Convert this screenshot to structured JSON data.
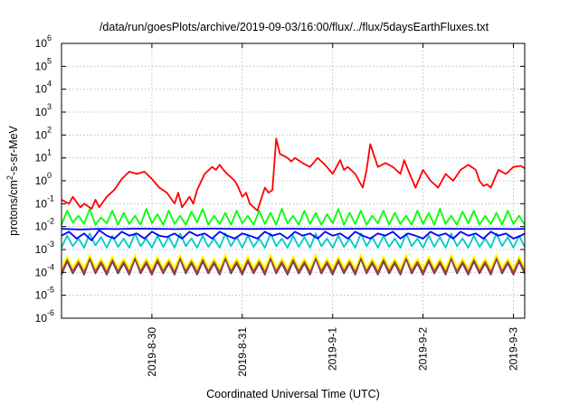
{
  "chart_data": {
    "type": "line",
    "title": "/data/run/goesPlots/archive/2019-09-03/16:00/flux/../flux/5daysEarthFluxes.txt",
    "xlabel": "Coordinated Universal Time (UTC)",
    "ylabel": "protons/cm2-s-sr-MeV",
    "ylabel_parts": {
      "before": "protons/cm",
      "sup": "2",
      "after": "-s-sr-MeV"
    },
    "y_scale": "log",
    "ylim": [
      1e-06,
      1000000.0
    ],
    "y_ticks": [
      {
        "exp": -6,
        "label": "10",
        "sup": "-6"
      },
      {
        "exp": -5,
        "label": "10",
        "sup": "-5"
      },
      {
        "exp": -4,
        "label": "10",
        "sup": "-4"
      },
      {
        "exp": -3,
        "label": "10",
        "sup": "-3"
      },
      {
        "exp": -2,
        "label": "10",
        "sup": "-2"
      },
      {
        "exp": -1,
        "label": "10",
        "sup": "-1"
      },
      {
        "exp": 0,
        "label": "10",
        "sup": "0"
      },
      {
        "exp": 1,
        "label": "10",
        "sup": "1"
      },
      {
        "exp": 2,
        "label": "10",
        "sup": "2"
      },
      {
        "exp": 3,
        "label": "10",
        "sup": "3"
      },
      {
        "exp": 4,
        "label": "10",
        "sup": "4"
      },
      {
        "exp": 5,
        "label": "10",
        "sup": "5"
      },
      {
        "exp": 6,
        "label": "10",
        "sup": "6"
      }
    ],
    "x_unit": "hours",
    "xlim": [
      0,
      123
    ],
    "x_ticks": [
      {
        "x": 24,
        "label": "2019-8-30"
      },
      {
        "x": 48,
        "label": "2019-8-31"
      },
      {
        "x": 72,
        "label": "2019-9-1"
      },
      {
        "x": 96,
        "label": "2019-9-2"
      },
      {
        "x": 120,
        "label": "2019-9-3"
      }
    ],
    "grid": true,
    "series": [
      {
        "color": "#ff0000",
        "x": [
          0,
          2,
          3,
          5,
          6,
          8,
          9,
          10,
          12,
          14,
          16,
          18,
          20,
          22,
          24,
          26,
          28,
          30,
          31,
          32,
          34,
          35,
          36,
          38,
          40,
          41,
          42,
          43,
          44,
          46,
          47,
          48,
          49,
          50,
          52,
          54,
          55,
          56,
          57,
          58,
          60,
          61,
          62,
          64,
          66,
          68,
          70,
          72,
          74,
          75,
          76,
          78,
          79,
          80,
          81,
          82,
          84,
          86,
          88,
          90,
          91,
          92,
          94,
          96,
          98,
          100,
          102,
          104,
          106,
          108,
          110,
          111,
          112,
          113,
          114,
          116,
          118,
          120,
          122,
          123
        ],
        "values": [
          0.15,
          0.1,
          0.2,
          0.07,
          0.1,
          0.06,
          0.15,
          0.07,
          0.2,
          0.4,
          1.2,
          2.5,
          2,
          2.5,
          1.2,
          0.5,
          0.3,
          0.1,
          0.3,
          0.07,
          0.2,
          0.1,
          0.4,
          2,
          4,
          3,
          5,
          3,
          2,
          1,
          0.5,
          0.2,
          0.3,
          0.1,
          0.05,
          0.5,
          0.3,
          0.4,
          70,
          15,
          10,
          7,
          10,
          6,
          4,
          10,
          5,
          2,
          8,
          3,
          4,
          2,
          1,
          0.5,
          3,
          40,
          4,
          6,
          4,
          2,
          8,
          3,
          0.5,
          3,
          1,
          0.5,
          2,
          1,
          3,
          5,
          3,
          1,
          0.6,
          0.7,
          0.5,
          3,
          2,
          4,
          4.5,
          3.5
        ]
      },
      {
        "color": "#00ff00",
        "x": [
          0,
          3,
          6,
          9,
          12,
          15,
          18,
          21,
          24,
          27,
          30,
          33,
          36,
          39,
          42,
          45,
          48,
          51,
          54,
          57,
          60,
          63,
          66,
          69,
          72,
          75,
          78,
          81,
          84,
          87,
          90,
          93,
          96,
          99,
          102,
          105,
          108,
          111,
          114,
          117,
          120,
          123
        ],
        "values": [
          0.012,
          0.015,
          0.013,
          0.012,
          0.014,
          0.012,
          0.013,
          0.012,
          0.014,
          0.012,
          0.013,
          0.012,
          0.015,
          0.012,
          0.013,
          0.012,
          0.014,
          0.012,
          0.013,
          0.012,
          0.014,
          0.012,
          0.013,
          0.012,
          0.014,
          0.012,
          0.013,
          0.012,
          0.014,
          0.012,
          0.013,
          0.012,
          0.013,
          0.012,
          0.013,
          0.012,
          0.014,
          0.012,
          0.013,
          0.012,
          0.013,
          0.012
        ],
        "spikes": [
          0.05,
          0.03,
          0.06,
          0.025,
          0.05,
          0.04,
          0.03,
          0.06,
          0.035,
          0.05,
          0.03,
          0.045,
          0.06,
          0.03,
          0.04,
          0.05,
          0.03,
          0.05,
          0.04,
          0.06,
          0.03,
          0.05,
          0.04,
          0.035,
          0.06,
          0.04,
          0.05,
          0.03,
          0.05,
          0.04,
          0.03,
          0.05,
          0.04,
          0.06,
          0.03,
          0.045,
          0.05,
          0.03,
          0.04,
          0.05,
          0.03,
          0.04
        ]
      },
      {
        "color": "#0000ff",
        "x": [
          0,
          2,
          4,
          6,
          8,
          10,
          12,
          14,
          16,
          18,
          20,
          22,
          24,
          26,
          28,
          30,
          32,
          34,
          36,
          38,
          40,
          42,
          44,
          46,
          48,
          50,
          52,
          54,
          56,
          58,
          60,
          62,
          64,
          66,
          68,
          70,
          72,
          74,
          76,
          78,
          80,
          82,
          84,
          86,
          88,
          90,
          92,
          94,
          96,
          98,
          100,
          102,
          104,
          106,
          108,
          110,
          112,
          114,
          116,
          118,
          120,
          122,
          123
        ],
        "values": [
          0.004,
          0.006,
          0.003,
          0.005,
          0.0025,
          0.007,
          0.004,
          0.003,
          0.006,
          0.004,
          0.005,
          0.003,
          0.006,
          0.004,
          0.0035,
          0.005,
          0.003,
          0.006,
          0.004,
          0.005,
          0.003,
          0.006,
          0.004,
          0.003,
          0.005,
          0.004,
          0.003,
          0.006,
          0.004,
          0.005,
          0.003,
          0.006,
          0.004,
          0.005,
          0.003,
          0.006,
          0.004,
          0.005,
          0.003,
          0.006,
          0.004,
          0.003,
          0.005,
          0.004,
          0.006,
          0.003,
          0.005,
          0.004,
          0.003,
          0.006,
          0.004,
          0.005,
          0.003,
          0.006,
          0.004,
          0.005,
          0.003,
          0.006,
          0.004,
          0.005,
          0.003,
          0.004,
          0.005
        ]
      },
      {
        "color": "#0000ff",
        "x": [
          0,
          5,
          10,
          15,
          20,
          25,
          30,
          35,
          40,
          45,
          50,
          55,
          60,
          65,
          70,
          75,
          80,
          85,
          90,
          95,
          100,
          105,
          110,
          115,
          120,
          123
        ],
        "values": [
          0.008,
          0.0075,
          0.008,
          0.0078,
          0.0082,
          0.008,
          0.0078,
          0.008,
          0.0082,
          0.008,
          0.0079,
          0.008,
          0.0081,
          0.008,
          0.0079,
          0.008,
          0.0081,
          0.008,
          0.0079,
          0.008,
          0.0081,
          0.008,
          0.0079,
          0.008,
          0.0078,
          0.008
        ]
      },
      {
        "color": "#00c8c8",
        "x": [
          0,
          3,
          6,
          9,
          12,
          15,
          18,
          21,
          24,
          27,
          30,
          33,
          36,
          39,
          42,
          45,
          48,
          51,
          54,
          57,
          60,
          63,
          66,
          69,
          72,
          75,
          78,
          81,
          84,
          87,
          90,
          93,
          96,
          99,
          102,
          105,
          108,
          111,
          114,
          117,
          120,
          123
        ],
        "values": [
          0.0012,
          0.0014,
          0.0012,
          0.0015,
          0.0012,
          0.0013,
          0.0012,
          0.0014,
          0.0012,
          0.0013,
          0.0012,
          0.0014,
          0.0012,
          0.0013,
          0.0012,
          0.0014,
          0.0012,
          0.0013,
          0.0012,
          0.0014,
          0.0012,
          0.0013,
          0.0012,
          0.0014,
          0.0012,
          0.0013,
          0.0012,
          0.0014,
          0.0012,
          0.0013,
          0.0012,
          0.0014,
          0.0012,
          0.0013,
          0.0012,
          0.0014,
          0.0012,
          0.0013,
          0.0012,
          0.0014,
          0.0012,
          0.0013
        ],
        "spikes": [
          0.004,
          0.003,
          0.005,
          0.0035,
          0.004,
          0.003,
          0.005,
          0.003,
          0.004,
          0.0035,
          0.005,
          0.003,
          0.004,
          0.003,
          0.005,
          0.0035,
          0.004,
          0.003,
          0.005,
          0.003,
          0.004,
          0.0035,
          0.005,
          0.003,
          0.004,
          0.003,
          0.005,
          0.0035,
          0.004,
          0.003,
          0.005,
          0.003,
          0.004,
          0.0035,
          0.005,
          0.003,
          0.004,
          0.003,
          0.005,
          0.0035,
          0.004,
          0.003
        ]
      },
      {
        "color": "#ffff00",
        "x": [
          0,
          3,
          6,
          9,
          12,
          15,
          18,
          21,
          24,
          27,
          30,
          33,
          36,
          39,
          42,
          45,
          48,
          51,
          54,
          57,
          60,
          63,
          66,
          69,
          72,
          75,
          78,
          81,
          84,
          87,
          90,
          93,
          96,
          99,
          102,
          105,
          108,
          111,
          114,
          117,
          120,
          123
        ],
        "values": [
          0.00015,
          0.00016,
          0.00015,
          0.00016,
          0.00015,
          0.00016,
          0.00015,
          0.00016,
          0.00015,
          0.00016,
          0.00015,
          0.00016,
          0.00015,
          0.00016,
          0.00015,
          0.00016,
          0.00015,
          0.00016,
          0.00015,
          0.00016,
          0.00015,
          0.00016,
          0.00015,
          0.00016,
          0.00015,
          0.00016,
          0.00015,
          0.00016,
          0.00015,
          0.00016,
          0.00015,
          0.00016,
          0.00015,
          0.00016,
          0.00015,
          0.00016,
          0.00015,
          0.00016,
          0.00015,
          0.00016,
          0.00015,
          0.00016
        ],
        "spikes": [
          0.0005,
          0.0004,
          0.0006,
          0.0004,
          0.0005,
          0.0004,
          0.0006,
          0.0004,
          0.0005,
          0.0004,
          0.0006,
          0.0004,
          0.0005,
          0.0004,
          0.0006,
          0.0004,
          0.0005,
          0.0004,
          0.0006,
          0.0004,
          0.0005,
          0.0004,
          0.0006,
          0.0004,
          0.0005,
          0.0004,
          0.0006,
          0.0004,
          0.0005,
          0.0004,
          0.0006,
          0.0004,
          0.0005,
          0.0004,
          0.0006,
          0.0004,
          0.0005,
          0.0004,
          0.0006,
          0.0004,
          0.0005,
          0.0004
        ]
      },
      {
        "color": "#a0522d",
        "x": [
          0,
          3,
          6,
          9,
          12,
          15,
          18,
          21,
          24,
          27,
          30,
          33,
          36,
          39,
          42,
          45,
          48,
          51,
          54,
          57,
          60,
          63,
          66,
          69,
          72,
          75,
          78,
          81,
          84,
          87,
          90,
          93,
          96,
          99,
          102,
          105,
          108,
          111,
          114,
          117,
          120,
          123
        ],
        "values": [
          0.0001,
          0.00011,
          0.0001,
          0.00011,
          0.0001,
          0.00011,
          0.0001,
          0.00011,
          0.0001,
          0.00011,
          0.0001,
          0.00011,
          0.0001,
          0.00011,
          0.0001,
          0.00011,
          0.0001,
          0.00011,
          0.0001,
          0.00011,
          0.0001,
          0.00011,
          0.0001,
          0.00011,
          0.0001,
          0.00011,
          0.0001,
          0.00011,
          0.0001,
          0.00011,
          0.0001,
          0.00011,
          0.0001,
          0.00011,
          0.0001,
          0.00011,
          0.0001,
          0.00011,
          0.0001,
          0.00011,
          0.0001,
          0.00011
        ],
        "spikes": [
          0.0004,
          0.0003,
          0.0005,
          0.0003,
          0.0004,
          0.0003,
          0.0005,
          0.0003,
          0.0004,
          0.0003,
          0.0005,
          0.0003,
          0.0004,
          0.0003,
          0.0005,
          0.0003,
          0.0004,
          0.0003,
          0.0005,
          0.0003,
          0.0004,
          0.0003,
          0.0005,
          0.0003,
          0.0004,
          0.0003,
          0.0005,
          0.0003,
          0.0004,
          0.0003,
          0.0005,
          0.0003,
          0.0004,
          0.0003,
          0.0005,
          0.0003,
          0.0004,
          0.0003,
          0.0005,
          0.0003,
          0.0004,
          0.0003
        ]
      },
      {
        "color": "#7b2d6b",
        "x": [
          0,
          3,
          6,
          9,
          12,
          15,
          18,
          21,
          24,
          27,
          30,
          33,
          36,
          39,
          42,
          45,
          48,
          51,
          54,
          57,
          60,
          63,
          66,
          69,
          72,
          75,
          78,
          81,
          84,
          87,
          90,
          93,
          96,
          99,
          102,
          105,
          108,
          111,
          114,
          117,
          120,
          123
        ],
        "values": [
          8e-05,
          9e-05,
          8e-05,
          9e-05,
          8e-05,
          9e-05,
          8e-05,
          9e-05,
          8e-05,
          9e-05,
          8e-05,
          9e-05,
          8e-05,
          9e-05,
          8e-05,
          9e-05,
          8e-05,
          9e-05,
          8e-05,
          9e-05,
          8e-05,
          9e-05,
          8e-05,
          9e-05,
          8e-05,
          9e-05,
          8e-05,
          9e-05,
          8e-05,
          9e-05,
          8e-05,
          9e-05,
          8e-05,
          9e-05,
          8e-05,
          9e-05,
          8e-05,
          9e-05,
          8e-05,
          9e-05,
          8e-05,
          9e-05
        ],
        "spikes": [
          0.0003,
          0.00025,
          0.0004,
          0.00025,
          0.0003,
          0.00025,
          0.0004,
          0.00025,
          0.0003,
          0.00025,
          0.0004,
          0.00025,
          0.0003,
          0.00025,
          0.0004,
          0.00025,
          0.0003,
          0.00025,
          0.0004,
          0.00025,
          0.0003,
          0.00025,
          0.0004,
          0.00025,
          0.0003,
          0.00025,
          0.0004,
          0.00025,
          0.0003,
          0.00025,
          0.0004,
          0.00025,
          0.0003,
          0.00025,
          0.0004,
          0.00025,
          0.0003,
          0.00025,
          0.0004,
          0.00025,
          0.0003,
          0.00025
        ]
      }
    ]
  }
}
